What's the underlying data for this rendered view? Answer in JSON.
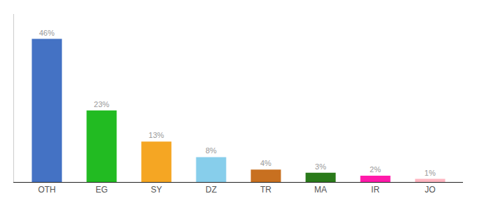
{
  "chart_data": {
    "type": "bar",
    "categories": [
      "OTH",
      "EG",
      "SY",
      "DZ",
      "TR",
      "MA",
      "IR",
      "JO"
    ],
    "values": [
      46,
      23,
      13,
      8,
      4,
      3,
      2,
      1
    ],
    "value_labels": [
      "46%",
      "23%",
      "13%",
      "8%",
      "4%",
      "3%",
      "2%",
      "1%"
    ],
    "colors": [
      "#4472c4",
      "#22bb22",
      "#f5a623",
      "#87ceeb",
      "#c87020",
      "#2a7a1a",
      "#ff1aaa",
      "#ffb6c1"
    ],
    "ylim": [
      0,
      54
    ],
    "data_labels": true,
    "tick_labels": "x",
    "grid": false
  }
}
